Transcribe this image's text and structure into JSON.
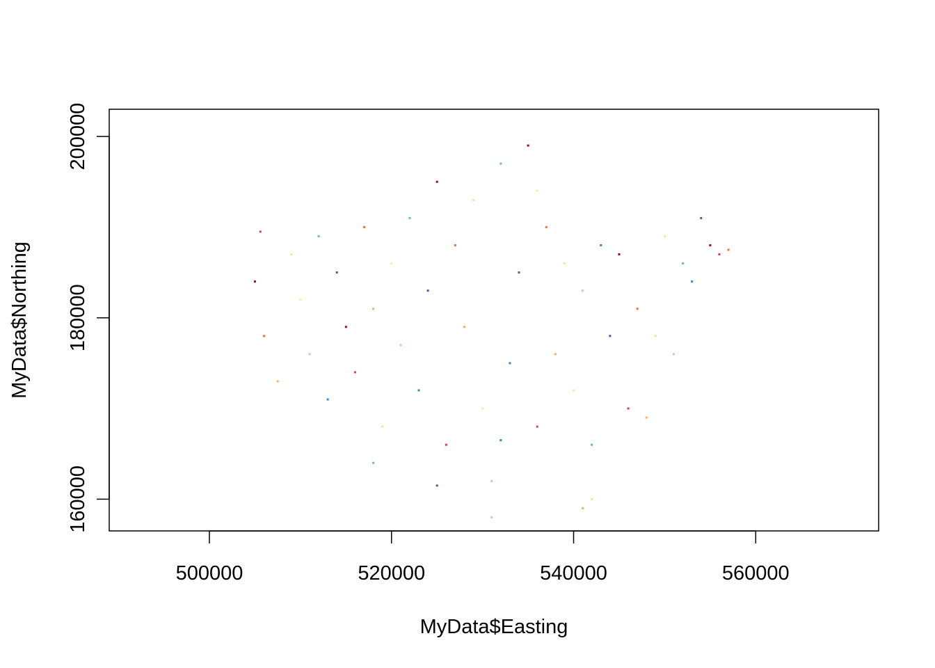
{
  "chart_data": {
    "type": "scatter",
    "title": "",
    "xlabel": "MyData$Easting",
    "ylabel": "MyData$Northing",
    "xlim": [
      489000,
      573500
    ],
    "ylim": [
      156500,
      203000
    ],
    "x_ticks": [
      500000,
      520000,
      540000,
      560000
    ],
    "y_ticks": [
      160000,
      180000,
      200000
    ],
    "x_tick_labels": [
      "500000",
      "520000",
      "540000",
      "560000"
    ],
    "y_tick_labels": [
      "160000",
      "180000",
      "200000"
    ],
    "grid": false,
    "legend": "none",
    "point_palette": [
      "#9E0142",
      "#D53E4F",
      "#F46D43",
      "#FDAE61",
      "#FEE08B",
      "#E6F598",
      "#ABDDA4",
      "#66C2A5",
      "#3288BD",
      "#5E4FA2"
    ],
    "series": [
      {
        "x": [
          505000,
          505600,
          506000,
          507500,
          509000,
          510000,
          511000,
          512000,
          513000,
          514000,
          515000,
          516000,
          517000,
          518000,
          519000,
          520000,
          521000,
          522000,
          523000,
          524000,
          525000,
          526000,
          527000,
          528000,
          529000,
          530000,
          531000,
          532000,
          533000,
          534000,
          535000,
          536000,
          537000,
          538000,
          539000,
          540000,
          541000,
          542000,
          543000,
          544000,
          545000,
          546000,
          547000,
          548000,
          549000,
          550000,
          551000,
          552000,
          553000,
          554000,
          555000,
          556000,
          557000,
          541000,
          542000,
          536000,
          531000,
          518000,
          532000,
          525000
        ],
        "y": [
          184000,
          189500,
          178000,
          173000,
          187000,
          182000,
          176000,
          189000,
          171000,
          185000,
          179000,
          174000,
          190000,
          181000,
          168000,
          186000,
          177000,
          191000,
          172000,
          183000,
          195000,
          166000,
          188000,
          179000,
          193000,
          170000,
          162000,
          197000,
          175000,
          185000,
          199000,
          168000,
          190000,
          176000,
          186000,
          172000,
          183000,
          166000,
          188000,
          178000,
          187000,
          170000,
          181000,
          169000,
          178000,
          189000,
          176000,
          186000,
          184000,
          191000,
          188000,
          187000,
          187500,
          159000,
          160000,
          194000,
          158000,
          164000,
          166500,
          161500
        ]
      }
    ]
  }
}
